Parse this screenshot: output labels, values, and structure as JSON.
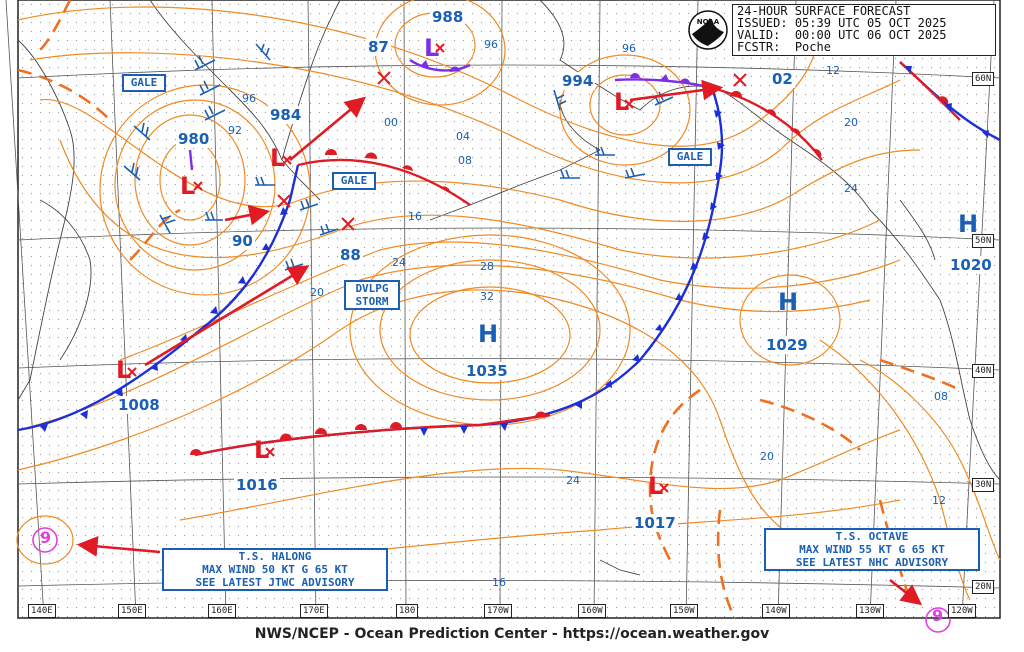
{
  "header": {
    "title": "24-HOUR SURFACE FORECAST",
    "issued_label": "ISSUED:",
    "issued": "05:39 UTC 05 OCT 2025",
    "valid_label": "VALID:",
    "valid": "00:00 UTC 06 OCT 2025",
    "fcstr_label": "FCSTR:",
    "fcstr": "Poche",
    "logo_text": "NOAA"
  },
  "footer": "NWS/NCEP - Ocean Prediction Center - https://ocean.weather.gov",
  "latitudes": [
    "60N",
    "50N",
    "40N",
    "30N",
    "20N"
  ],
  "longitudes": [
    "140E",
    "150E",
    "160E",
    "170E",
    "180",
    "170W",
    "160W",
    "150W",
    "140W",
    "130W",
    "120W"
  ],
  "pressure_centers": [
    {
      "type": "L",
      "value": "980",
      "color": "#e01b24"
    },
    {
      "type": "L",
      "value": "984",
      "color": "#e01b24"
    },
    {
      "type": "L",
      "value": "988",
      "color": "#7d2ee6"
    },
    {
      "type": "L",
      "value": "994",
      "color": "#e01b24"
    },
    {
      "type": "L",
      "value": "1008",
      "color": "#e01b24"
    },
    {
      "type": "L",
      "value": "1016",
      "color": "#e01b24"
    },
    {
      "type": "L",
      "value": "1017",
      "color": "#e01b24"
    },
    {
      "type": "H",
      "value": "1035",
      "color": "#1a5fb4"
    },
    {
      "type": "H",
      "value": "1029",
      "color": "#1a5fb4"
    },
    {
      "type": "H",
      "value": "1020",
      "color": "#1a5fb4"
    }
  ],
  "isobar_labels": [
    "96",
    "92",
    "90",
    "87",
    "96",
    "00",
    "04",
    "08",
    "16",
    "24",
    "28",
    "32",
    "20",
    "88",
    "96",
    "02",
    "12",
    "20",
    "24",
    "20",
    "08",
    "12",
    "24",
    "16"
  ],
  "warnings": [
    {
      "text": "GALE"
    },
    {
      "text": "GALE"
    },
    {
      "text": "GALE"
    },
    {
      "line1": "DVLPG",
      "line2": "STORM"
    }
  ],
  "tropical": [
    {
      "name": "T.S. HALONG",
      "wind": "MAX WIND 50 KT G 65 KT",
      "advisory": "SEE LATEST JTWC ADVISORY",
      "symbol": "9"
    },
    {
      "name": "T.S. OCTAVE",
      "wind": "MAX WIND 55 KT G 65 KT",
      "advisory": "SEE LATEST NHC ADVISORY",
      "symbol": "9"
    }
  ],
  "colors": {
    "isobar": "#f08a24",
    "cold_front": "#1c2fd8",
    "warm_front": "#e01b24",
    "occluded": "#7d2ee6",
    "trough": "#f07020",
    "motion_arrow": "#e01b24",
    "coast": "#444444",
    "label_blue": "#1a5fb4"
  }
}
